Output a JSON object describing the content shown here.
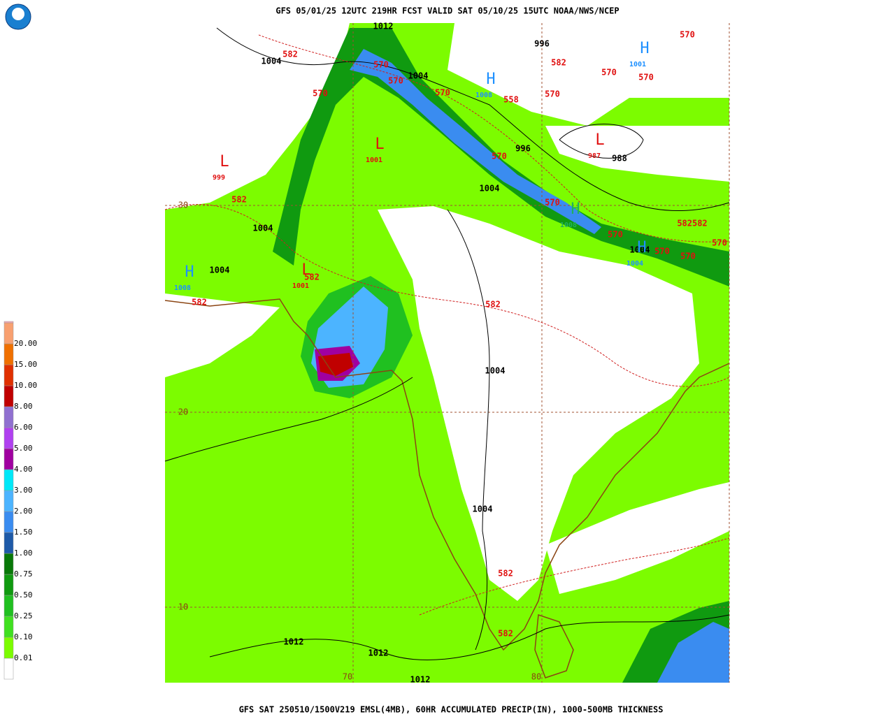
{
  "header": {
    "title": "GFS 05/01/25 12UTC 219HR FCST VALID SAT 05/10/25 15UTC NOAA/NWS/NCEP"
  },
  "footer": {
    "caption": "GFS SAT 250510/1500V219 EMSL(4MB), 60HR ACCUMULATED PRECIP(IN), 1000-500MB THICKNESS"
  },
  "legend": {
    "labels": [
      "0.01",
      "0.10",
      "0.25",
      "0.50",
      "0.75",
      "1.00",
      "1.50",
      "2.00",
      "3.00",
      "4.00",
      "5.00",
      "6.00",
      "8.00",
      "10.00",
      "15.00",
      "20.00"
    ],
    "colors": [
      "#ffffff",
      "#7cfc00",
      "#40e020",
      "#20c020",
      "#109a10",
      "#087808",
      "#1e5aa8",
      "#3a8cf0",
      "#4cb4ff",
      "#00e8f8",
      "#a000a0",
      "#b040f0",
      "#9070d0",
      "#c00000",
      "#e03000",
      "#f07000",
      "#f8a070",
      "#f8a8b8"
    ]
  },
  "map": {
    "pressure_labels": [
      "1012",
      "1004",
      "996",
      "1004",
      "996",
      "988",
      "1004",
      "1004",
      "1004",
      "1004",
      "1004",
      "1004",
      "1012",
      "1012",
      "1012"
    ],
    "thickness_labels": [
      "570",
      "582",
      "570",
      "582",
      "570",
      "570",
      "570",
      "570",
      "570",
      "558",
      "570",
      "570",
      "582",
      "570",
      "582582",
      "570",
      "570",
      "570",
      "570",
      "582",
      "582",
      "582",
      "582",
      "582"
    ],
    "lows": [
      {
        "letter": "L",
        "value": "999"
      },
      {
        "letter": "L",
        "value": "1001"
      },
      {
        "letter": "L",
        "value": "987"
      },
      {
        "letter": "L",
        "value": "1001"
      }
    ],
    "highs": [
      {
        "letter": "H",
        "value": "1001"
      },
      {
        "letter": "H",
        "value": "1008"
      },
      {
        "letter": "H",
        "value": "1008"
      },
      {
        "letter": "H",
        "value": "1008"
      },
      {
        "letter": "H",
        "value": "1004"
      }
    ],
    "grid_labels": [
      "30",
      "20",
      "10",
      "70",
      "80"
    ]
  }
}
